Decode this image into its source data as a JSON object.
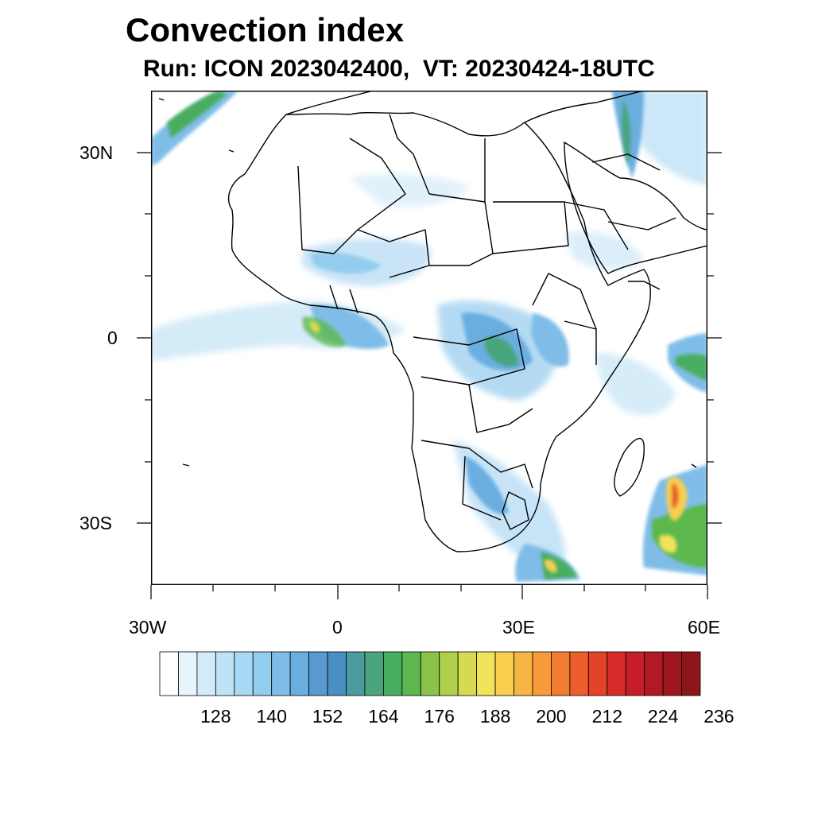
{
  "title": "Convection index",
  "subtitle": "Run: ICON 2023042400,  VT: 20230424-18UTC",
  "axes": {
    "lat_labels": [
      "30N",
      "0",
      "30S"
    ],
    "lon_labels": [
      "30W",
      "0",
      "30E",
      "60E"
    ]
  },
  "colorbar": {
    "labels": [
      "128",
      "140",
      "152",
      "164",
      "176",
      "188",
      "200",
      "212",
      "224",
      "236"
    ],
    "colors": [
      "#ffffff",
      "#e8f4fc",
      "#d2ebf8",
      "#bfe3f6",
      "#a8d9f4",
      "#92cdef",
      "#7fbde8",
      "#6aaee0",
      "#5899d2",
      "#4a8fc2",
      "#4b9ba0",
      "#4aa57d",
      "#49ad5f",
      "#5cb84e",
      "#8ac24c",
      "#b0cf4c",
      "#d6da50",
      "#f1e35a",
      "#f8cf4f",
      "#f7b545",
      "#f69a3a",
      "#f27c31",
      "#ec5f2c",
      "#e2432a",
      "#d62b29",
      "#c51e26",
      "#b11a23",
      "#9f181f",
      "#8d161b"
    ]
  }
}
